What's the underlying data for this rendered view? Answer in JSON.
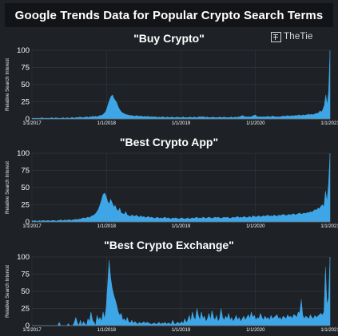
{
  "header": {
    "title": "Google Trends Data for Popular Crypto Search Terms"
  },
  "brand": {
    "name": "TheTie"
  },
  "colors": {
    "background": "#1e2125",
    "header_bg": "#121417",
    "series": "#3ea6e6",
    "grid": "#3a3f45"
  },
  "chart_data": [
    {
      "type": "area",
      "title": "\"Buy Crypto\"",
      "ylabel": "Relative Search Interest",
      "xlabel": "",
      "ylim": [
        0,
        100
      ],
      "yticks": [
        0,
        25,
        50,
        75,
        100
      ],
      "xticks": [
        "1/1/2017",
        "1/1/2018",
        "1/1/2019",
        "1/1/2020",
        "1/1/2021"
      ],
      "grid": true,
      "series": [
        {
          "values": [
            1,
            1,
            1,
            1,
            1,
            1,
            1,
            2,
            1,
            1,
            1,
            1,
            1,
            1,
            2,
            1,
            1,
            2,
            1,
            1,
            1,
            1,
            2,
            1,
            1,
            2,
            1,
            1,
            2,
            2,
            1,
            2,
            2,
            2,
            3,
            2,
            2,
            2,
            3,
            3,
            2,
            3,
            3,
            4,
            3,
            4,
            3,
            4,
            5,
            5,
            6,
            8,
            10,
            15,
            22,
            28,
            33,
            35,
            30,
            27,
            24,
            18,
            14,
            11,
            9,
            8,
            7,
            6,
            6,
            5,
            5,
            5,
            4,
            4,
            5,
            4,
            4,
            4,
            4,
            3,
            4,
            3,
            4,
            3,
            3,
            3,
            3,
            3,
            3,
            2,
            3,
            2,
            3,
            3,
            2,
            2,
            3,
            2,
            2,
            3,
            2,
            2,
            2,
            3,
            2,
            2,
            2,
            3,
            2,
            2,
            2,
            2,
            3,
            2,
            2,
            3,
            2,
            2,
            3,
            3,
            3,
            3,
            3,
            2,
            3,
            2,
            2,
            2,
            3,
            2,
            2,
            2,
            2,
            3,
            2,
            2,
            3,
            2,
            2,
            2,
            2,
            3,
            2,
            2,
            3,
            2,
            3,
            3,
            4,
            5,
            4,
            3,
            3,
            3,
            3,
            3,
            4,
            5,
            6,
            4,
            3,
            3,
            3,
            3,
            3,
            3,
            3,
            4,
            3,
            3,
            4,
            4,
            3,
            3,
            3,
            3,
            3,
            4,
            4,
            4,
            4,
            5,
            4,
            4,
            5,
            4,
            5,
            5,
            5,
            6,
            5,
            5,
            6,
            5,
            6,
            6,
            7,
            6,
            7,
            6,
            7,
            8,
            8,
            9,
            12,
            10,
            14,
            20,
            35,
            20,
            40,
            100
          ]
        }
      ]
    },
    {
      "type": "area",
      "title": "\"Best Crypto App\"",
      "ylabel": "Relative Search Interest",
      "xlabel": "",
      "ylim": [
        0,
        100
      ],
      "yticks": [
        0,
        25,
        50,
        75,
        100
      ],
      "xticks": [
        "1/1/2017",
        "1/1/2018",
        "1/1/2019",
        "1/1/2020",
        "1/1/2021"
      ],
      "grid": true,
      "series": [
        {
          "values": [
            2,
            1,
            2,
            1,
            1,
            2,
            1,
            2,
            2,
            1,
            2,
            2,
            1,
            2,
            2,
            2,
            1,
            2,
            2,
            3,
            2,
            2,
            3,
            2,
            3,
            3,
            2,
            3,
            3,
            4,
            3,
            4,
            4,
            5,
            6,
            5,
            6,
            7,
            6,
            8,
            9,
            10,
            12,
            15,
            19,
            25,
            32,
            40,
            42,
            38,
            30,
            26,
            33,
            28,
            22,
            24,
            18,
            16,
            20,
            13,
            12,
            11,
            15,
            10,
            9,
            8,
            10,
            9,
            8,
            10,
            8,
            7,
            9,
            7,
            8,
            6,
            7,
            8,
            6,
            7,
            6,
            5,
            6,
            7,
            5,
            6,
            5,
            6,
            7,
            5,
            6,
            5,
            4,
            6,
            5,
            6,
            5,
            4,
            5,
            6,
            5,
            4,
            5,
            6,
            4,
            5,
            6,
            5,
            6,
            7,
            5,
            6,
            5,
            7,
            6,
            5,
            6,
            7,
            6,
            5,
            6,
            7,
            6,
            7,
            6,
            5,
            6,
            7,
            6,
            7,
            6,
            5,
            6,
            7,
            6,
            7,
            8,
            6,
            7,
            6,
            8,
            7,
            6,
            7,
            8,
            6,
            9,
            8,
            7,
            8,
            9,
            7,
            8,
            9,
            8,
            9,
            10,
            8,
            9,
            8,
            10,
            9,
            8,
            10,
            9,
            10,
            11,
            10,
            9,
            10,
            11,
            10,
            11,
            12,
            10,
            11,
            12,
            13,
            11,
            12,
            13,
            12,
            14,
            13,
            15,
            14,
            16,
            18,
            17,
            20,
            19,
            23,
            25,
            22,
            45,
            30,
            55,
            100
          ]
        }
      ]
    },
    {
      "type": "area",
      "title": "\"Best Crypto Exchange\"",
      "ylabel": "Relative Search Interest",
      "xlabel": "",
      "ylim": [
        0,
        100
      ],
      "yticks": [
        0,
        25,
        50,
        75,
        100
      ],
      "xticks": [
        "1/1/2017",
        "1/1/2018",
        "1/1/2019",
        "1/1/2020",
        "1/1/2021"
      ],
      "grid": true,
      "series": [
        {
          "values": [
            0,
            0,
            0,
            0,
            0,
            0,
            0,
            0,
            0,
            0,
            0,
            0,
            0,
            0,
            0,
            0,
            0,
            0,
            5,
            0,
            0,
            0,
            0,
            0,
            3,
            0,
            0,
            0,
            5,
            12,
            4,
            0,
            8,
            0,
            6,
            3,
            0,
            10,
            6,
            20,
            8,
            5,
            0,
            15,
            8,
            12,
            6,
            20,
            10,
            25,
            60,
            95,
            70,
            55,
            45,
            38,
            30,
            20,
            15,
            18,
            8,
            10,
            6,
            12,
            5,
            4,
            8,
            3,
            6,
            4,
            2,
            5,
            3,
            4,
            6,
            3,
            5,
            4,
            3,
            2,
            3,
            4,
            2,
            3,
            5,
            2,
            4,
            3,
            5,
            2,
            4,
            3,
            2,
            8,
            3,
            2,
            5,
            4,
            3,
            6,
            3,
            10,
            4,
            8,
            15,
            6,
            20,
            12,
            8,
            25,
            15,
            8,
            20,
            10,
            14,
            6,
            10,
            18,
            8,
            22,
            12,
            8,
            15,
            6,
            10,
            25,
            12,
            8,
            14,
            10,
            18,
            8,
            12,
            6,
            10,
            15,
            8,
            12,
            6,
            10,
            14,
            8,
            12,
            16,
            10,
            20,
            12,
            15,
            8,
            12,
            10,
            18,
            12,
            8,
            14,
            10,
            12,
            8,
            15,
            10,
            12,
            14,
            16,
            10,
            12,
            8,
            14,
            12,
            10,
            16,
            12,
            14,
            10,
            16,
            15,
            12,
            20,
            18,
            38,
            15,
            10,
            14,
            12,
            10,
            16,
            12,
            10,
            15,
            12,
            14,
            16,
            18,
            15,
            20,
            85,
            30,
            40,
            100
          ]
        }
      ]
    }
  ]
}
